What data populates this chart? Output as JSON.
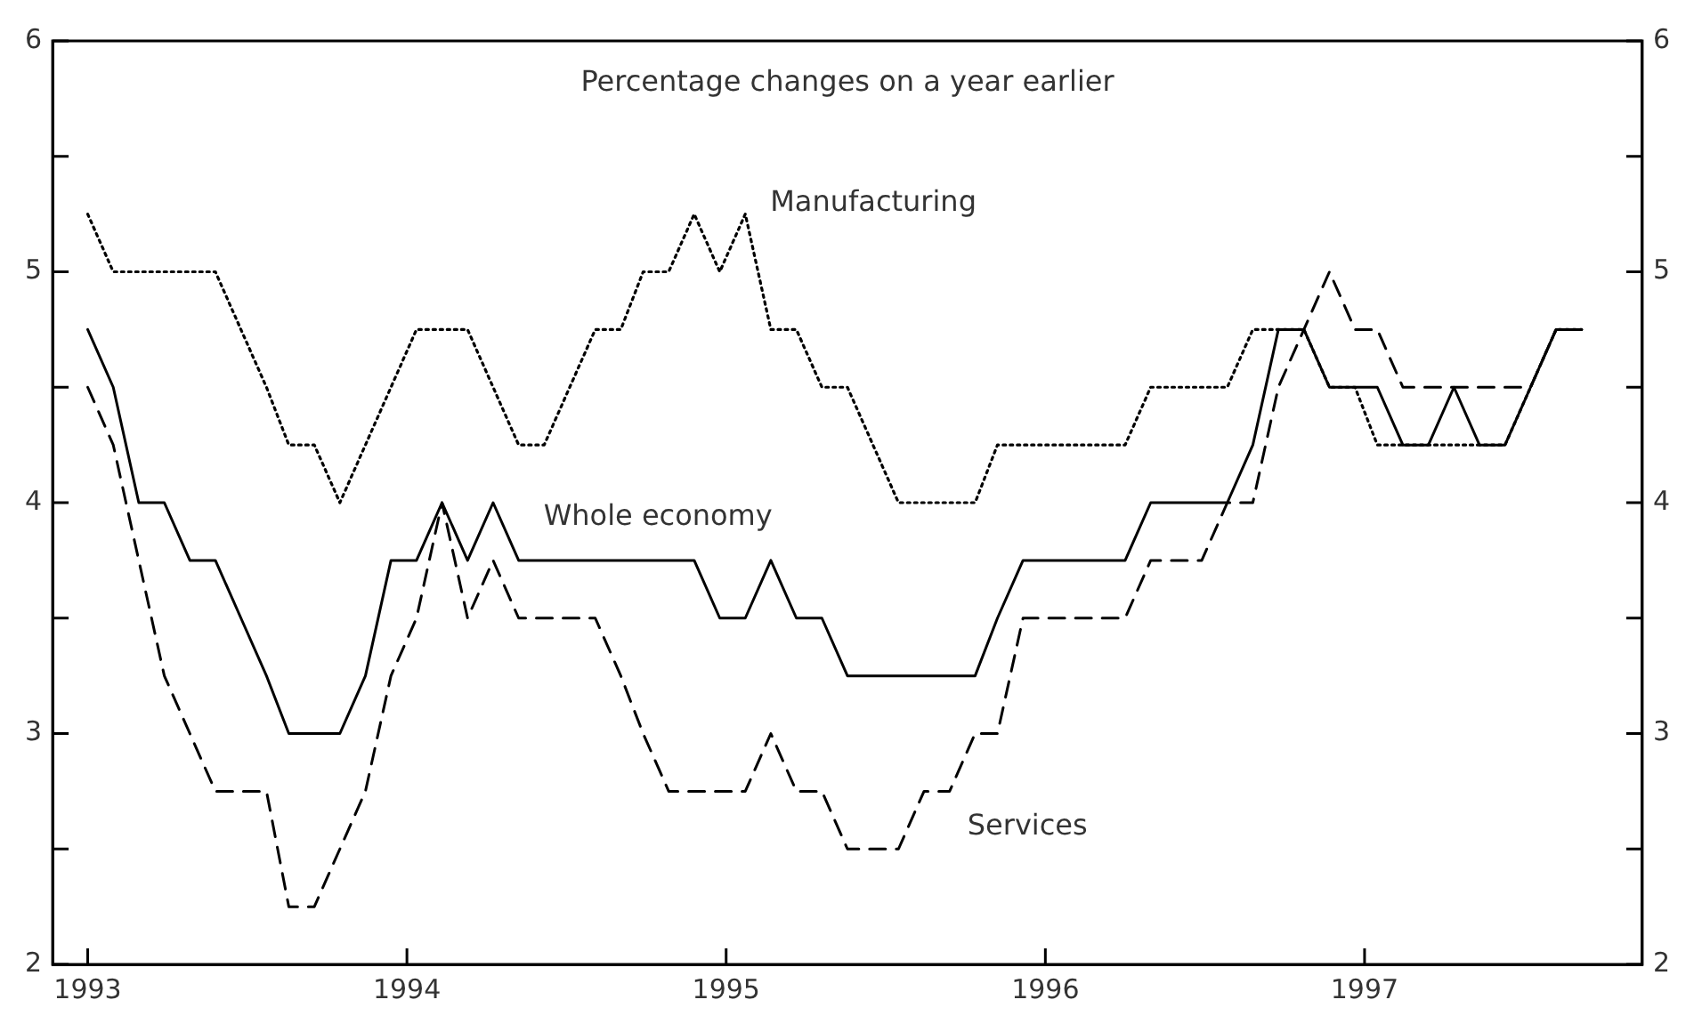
{
  "chart_data": {
    "type": "line",
    "annotations": [
      "Percentage changes on a year earlier"
    ],
    "x": [
      1993.0,
      1993.08,
      1993.16,
      1993.24,
      1993.32,
      1993.4,
      1993.48,
      1993.56,
      1993.63,
      1993.71,
      1993.79,
      1993.87,
      1993.95,
      1994.03,
      1994.11,
      1994.19,
      1994.27,
      1994.35,
      1994.43,
      1994.51,
      1994.59,
      1994.67,
      1994.74,
      1994.82,
      1994.9,
      1994.98,
      1995.06,
      1995.14,
      1995.22,
      1995.3,
      1995.38,
      1995.46,
      1995.54,
      1995.62,
      1995.7,
      1995.78,
      1995.85,
      1995.93,
      1996.01,
      1996.09,
      1996.17,
      1996.25,
      1996.33,
      1996.41,
      1996.49,
      1996.57,
      1996.65,
      1996.73,
      1996.81,
      1996.89,
      1996.97,
      1997.04,
      1997.12,
      1997.2,
      1997.28,
      1997.36,
      1997.44,
      1997.52,
      1997.6,
      1997.68
    ],
    "series": [
      {
        "name": "Whole economy",
        "color": "#000000",
        "line_style": "solid",
        "values": [
          4.75,
          4.5,
          4,
          4,
          3.75,
          3.75,
          3.5,
          3.25,
          3,
          3,
          3,
          3.25,
          3.75,
          3.75,
          4,
          3.75,
          4,
          3.75,
          3.75,
          3.75,
          3.75,
          3.75,
          3.75,
          3.75,
          3.75,
          3.5,
          3.5,
          3.75,
          3.5,
          3.5,
          3.25,
          3.25,
          3.25,
          3.25,
          3.25,
          3.25,
          3.5,
          3.75,
          3.75,
          3.75,
          3.75,
          3.75,
          4,
          4,
          4,
          4,
          4.25,
          4.75,
          4.75,
          4.5,
          4.5,
          4.5,
          4.25,
          4.25,
          4.5,
          4.25,
          4.25,
          4.5,
          4.75,
          4.75
        ]
      },
      {
        "name": "Manufacturing",
        "color": "#000000",
        "line_style": "dotted",
        "values": [
          5.25,
          5,
          5,
          5,
          5,
          5,
          4.75,
          4.5,
          4.25,
          4.25,
          4,
          4.25,
          4.5,
          4.75,
          4.75,
          4.75,
          4.5,
          4.25,
          4.25,
          4.5,
          4.75,
          4.75,
          5,
          5,
          5.25,
          5,
          5.25,
          4.75,
          4.75,
          4.5,
          4.5,
          4.25,
          4,
          4,
          4,
          4,
          4.25,
          4.25,
          4.25,
          4.25,
          4.25,
          4.25,
          4.5,
          4.5,
          4.5,
          4.5,
          4.75,
          4.75,
          4.75,
          4.5,
          4.5,
          4.25,
          4.25,
          4.25,
          4.25,
          4.25,
          4.25,
          4.5,
          4.75,
          4.75
        ]
      },
      {
        "name": "Services",
        "color": "#000000",
        "line_style": "dashed",
        "values": [
          4.5,
          4.25,
          3.75,
          3.25,
          3,
          2.75,
          2.75,
          2.75,
          2.25,
          2.25,
          2.5,
          2.75,
          3.25,
          3.5,
          4,
          3.5,
          3.75,
          3.5,
          3.5,
          3.5,
          3.5,
          3.25,
          3,
          2.75,
          2.75,
          2.75,
          2.75,
          3,
          2.75,
          2.75,
          2.5,
          2.5,
          2.5,
          2.75,
          2.75,
          3,
          3,
          3.5,
          3.5,
          3.5,
          3.5,
          3.5,
          3.75,
          3.75,
          3.75,
          4,
          4,
          4.5,
          4.75,
          5,
          4.75,
          4.75,
          4.5,
          4.5,
          4.5,
          4.5,
          4.5,
          4.5,
          4.75,
          4.75
        ]
      }
    ],
    "xlim": [
      1992.89,
      1997.87
    ],
    "xticks": [
      1993,
      1994,
      1995,
      1996,
      1997
    ],
    "ylim": [
      2,
      6
    ],
    "yticks": [
      2,
      {
        "value": 2.5,
        "label": null
      },
      3,
      {
        "value": 3.5,
        "label": null
      },
      4,
      {
        "value": 4.5,
        "label": null
      },
      5,
      {
        "value": 5.5,
        "label": null
      },
      6
    ],
    "y2lim": [
      2,
      6
    ],
    "y2ticks": [
      2,
      {
        "value": 2.5,
        "label": null
      },
      3,
      {
        "value": 3.5,
        "label": null
      },
      4,
      {
        "value": 4.5,
        "label": null
      },
      5,
      {
        "value": 5.5,
        "label": null
      },
      6
    ],
    "marker": "none"
  }
}
